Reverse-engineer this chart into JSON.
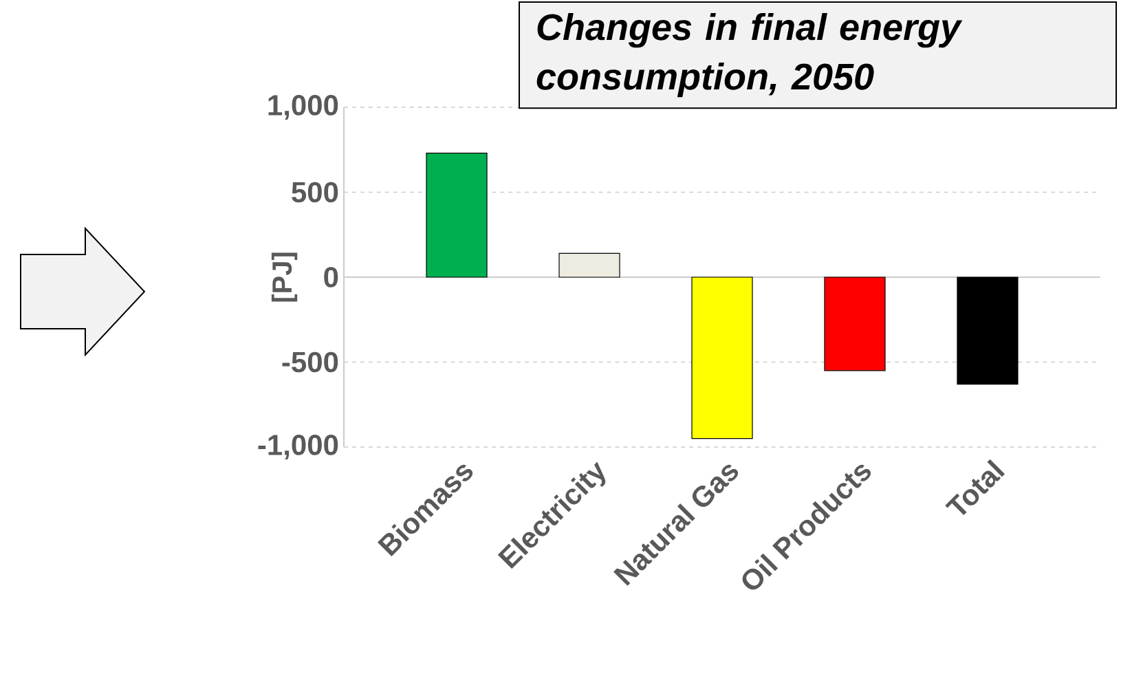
{
  "chart_data": {
    "type": "bar",
    "title": "Changes in final energy consumption, 2050",
    "ylabel": "[PJ]",
    "categories": [
      "Biomass",
      "Electricity",
      "Natural Gas",
      "Oil Products",
      "Total"
    ],
    "values": [
      730,
      140,
      -950,
      -550,
      -630
    ],
    "colors": [
      "#00b050",
      "#eeece1",
      "#ffff00",
      "#ff0000",
      "#000000"
    ],
    "ylim": [
      -1000,
      1000
    ],
    "yticks": [
      {
        "value": -1000,
        "label": "-1,000"
      },
      -500,
      0,
      500,
      {
        "value": 1000,
        "label": "1,000"
      }
    ],
    "grid": "y"
  }
}
